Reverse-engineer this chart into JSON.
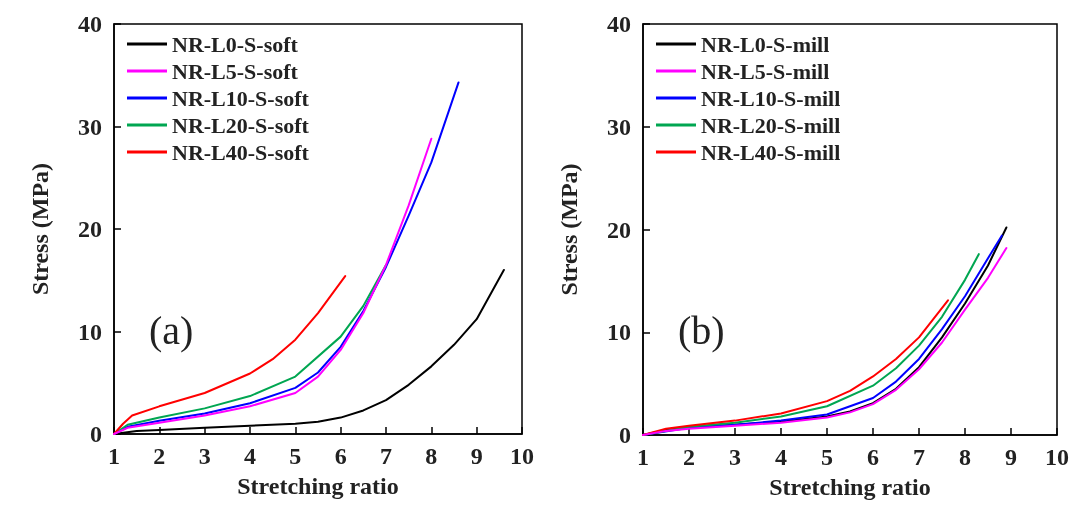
{
  "chart_data": [
    {
      "type": "line",
      "xlabel": "Stretching ratio",
      "ylabel": "Stress (MPa)",
      "annotations": [
        "(a)"
      ],
      "xlim": [
        1,
        10
      ],
      "xticks": [
        1,
        2,
        3,
        4,
        5,
        6,
        7,
        8,
        9,
        10
      ],
      "ylim": [
        0,
        40
      ],
      "yticks": [
        0,
        10,
        20,
        30,
        40
      ],
      "grid": false,
      "legend": "top left",
      "marker": "none",
      "line_style": "solid",
      "series": [
        {
          "name": "NR-L0-S-soft",
          "color": "#000000",
          "x": [
            1,
            1.5,
            2,
            3,
            4,
            5,
            5.5,
            6,
            6.5,
            7,
            7.5,
            8,
            8.5,
            9,
            9.6
          ],
          "values": [
            0,
            0.3,
            0.4,
            0.6,
            0.8,
            1.0,
            1.2,
            1.6,
            2.3,
            3.3,
            4.8,
            6.6,
            8.7,
            11.2,
            16
          ]
        },
        {
          "name": "NR-L5-S-soft",
          "color": "#ff00ff",
          "x": [
            1,
            1.3,
            2,
            3,
            4,
            5,
            5.5,
            6,
            6.5,
            7,
            7.5,
            8
          ],
          "values": [
            0,
            0.6,
            1.1,
            1.8,
            2.7,
            4.0,
            5.6,
            8.2,
            11.8,
            16.5,
            22.3,
            28.8
          ]
        },
        {
          "name": "NR-L10-S-soft",
          "color": "#0000ff",
          "x": [
            1,
            1.3,
            2,
            3,
            4,
            5,
            5.5,
            6,
            6.5,
            7,
            7.5,
            8,
            8.6
          ],
          "values": [
            0,
            0.7,
            1.3,
            2.0,
            3.0,
            4.5,
            6.0,
            8.5,
            12.0,
            16.3,
            21.3,
            26.5,
            34.3
          ]
        },
        {
          "name": "NR-L20-S-soft",
          "color": "#00a651",
          "x": [
            1,
            1.3,
            2,
            3,
            4,
            5,
            6,
            6.5,
            7
          ],
          "values": [
            0,
            0.9,
            1.6,
            2.5,
            3.7,
            5.6,
            9.5,
            12.5,
            16.5
          ]
        },
        {
          "name": "NR-L40-S-soft",
          "color": "#ff0000",
          "x": [
            1,
            1.2,
            1.4,
            2,
            3,
            4,
            4.5,
            5,
            5.5,
            6.1
          ],
          "values": [
            0,
            1.0,
            1.8,
            2.7,
            4.0,
            5.9,
            7.3,
            9.2,
            11.8,
            15.4
          ]
        }
      ]
    },
    {
      "type": "line",
      "xlabel": "Stretching ratio",
      "ylabel": "Stress (MPa)",
      "annotations": [
        "(b)"
      ],
      "xlim": [
        1,
        10
      ],
      "xticks": [
        1,
        2,
        3,
        4,
        5,
        6,
        7,
        8,
        9,
        10
      ],
      "ylim": [
        0,
        40
      ],
      "yticks": [
        0,
        10,
        20,
        30,
        40
      ],
      "grid": false,
      "legend": "top left",
      "marker": "none",
      "line_style": "solid",
      "series": [
        {
          "name": "NR-L0-S-mill",
          "color": "#000000",
          "x": [
            1,
            1.5,
            2,
            3,
            4,
            5,
            5.5,
            6,
            6.5,
            7,
            7.5,
            8,
            8.5,
            8.9
          ],
          "values": [
            0,
            0.5,
            0.7,
            1.0,
            1.3,
            1.8,
            2.3,
            3.1,
            4.5,
            6.6,
            9.5,
            12.8,
            16.5,
            20.2
          ]
        },
        {
          "name": "NR-L5-S-mill",
          "color": "#ff00ff",
          "x": [
            1,
            1.5,
            2,
            3,
            4,
            5,
            5.5,
            6,
            6.5,
            7,
            7.5,
            8,
            8.5,
            8.9
          ],
          "values": [
            0,
            0.4,
            0.6,
            0.9,
            1.2,
            1.7,
            2.2,
            3.0,
            4.4,
            6.4,
            9.0,
            12.2,
            15.3,
            18.2
          ]
        },
        {
          "name": "NR-L10-S-mill",
          "color": "#0000ff",
          "x": [
            1,
            2,
            3,
            4,
            5,
            6,
            6.5,
            7,
            7.5,
            8,
            8.5,
            8.8
          ],
          "values": [
            0,
            0.7,
            1.0,
            1.4,
            2.0,
            3.6,
            5.2,
            7.4,
            10.3,
            13.5,
            17.2,
            19.4
          ]
        },
        {
          "name": "NR-L20-S-mill",
          "color": "#00a651",
          "x": [
            1,
            2,
            3,
            4,
            5,
            6,
            6.5,
            7,
            7.5,
            8,
            8.3
          ],
          "values": [
            0,
            0.8,
            1.2,
            1.8,
            2.8,
            4.8,
            6.5,
            8.7,
            11.5,
            15.1,
            17.6
          ]
        },
        {
          "name": "NR-L40-S-mill",
          "color": "#ff0000",
          "x": [
            1,
            1.5,
            2,
            3,
            4,
            5,
            5.5,
            6,
            6.5,
            7,
            7.63
          ],
          "values": [
            0,
            0.6,
            0.9,
            1.4,
            2.1,
            3.3,
            4.3,
            5.7,
            7.4,
            9.5,
            13.1
          ]
        }
      ]
    }
  ]
}
